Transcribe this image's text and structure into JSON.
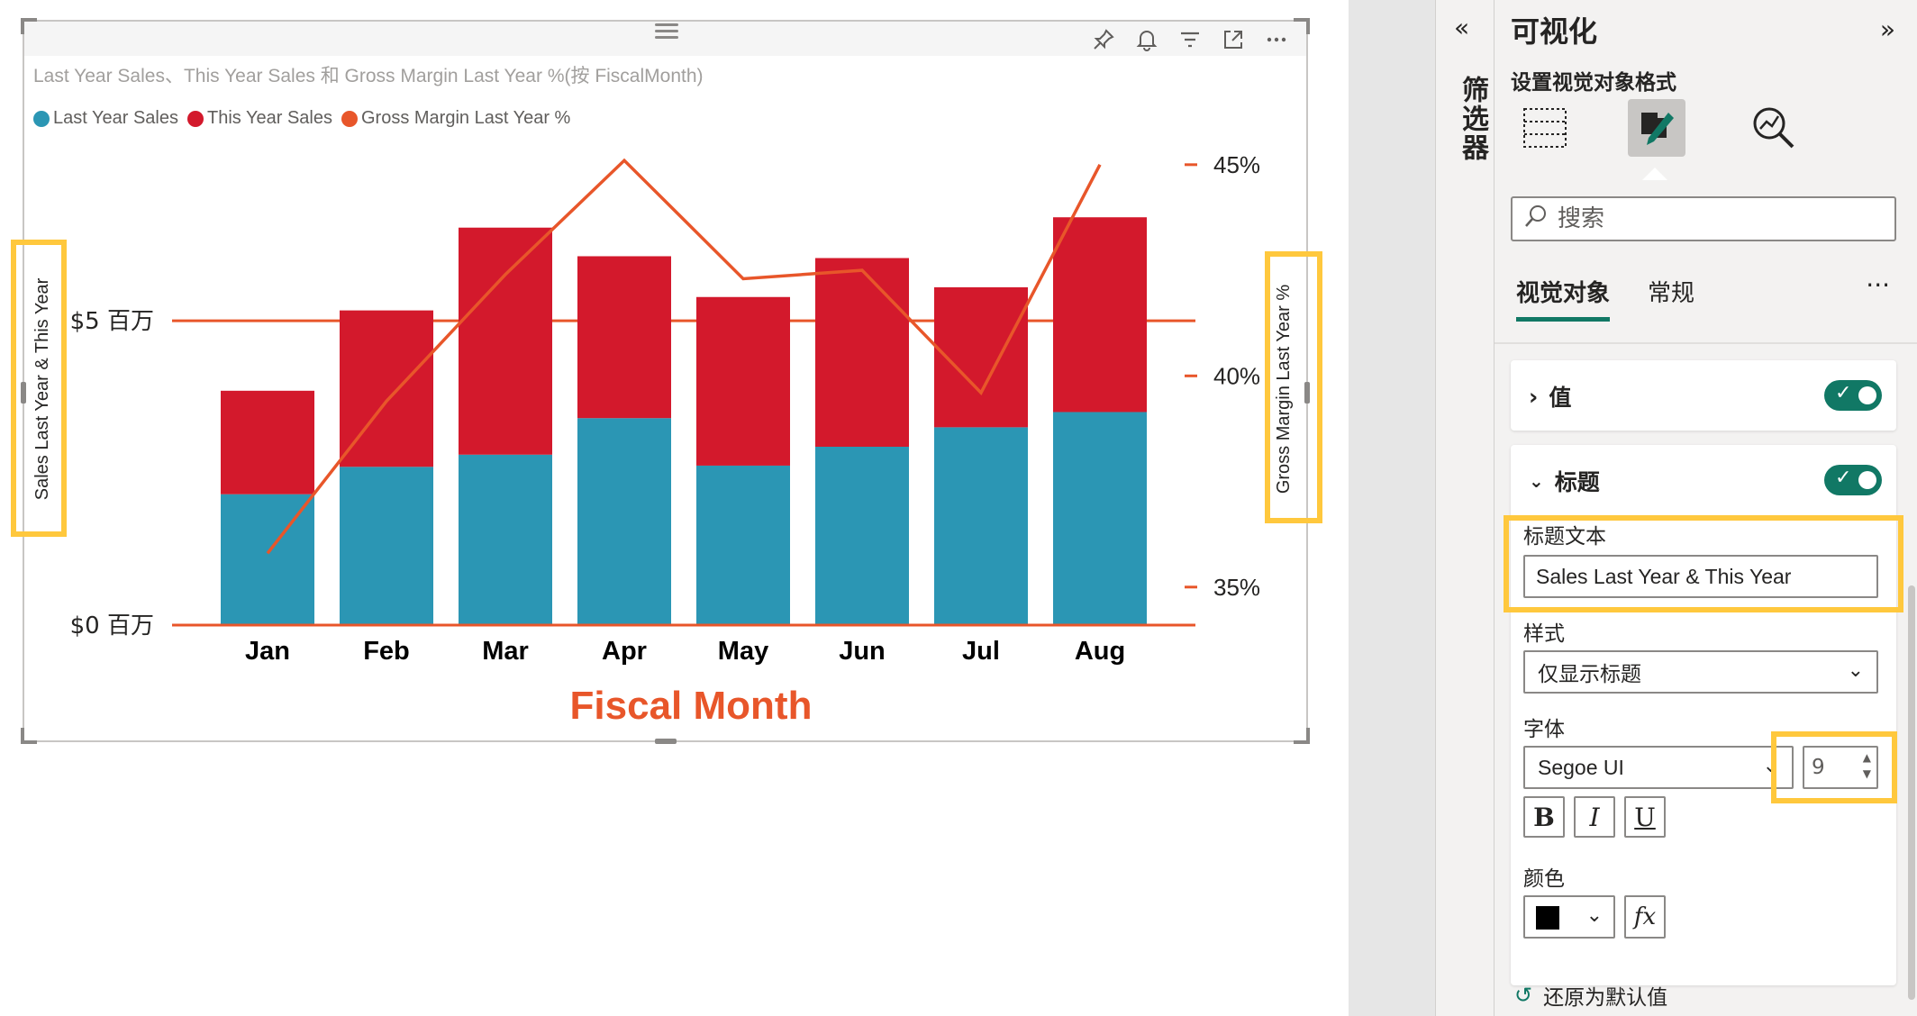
{
  "visual": {
    "title": "Last Year Sales、This Year Sales 和 Gross Margin Last Year %(按 FiscalMonth)",
    "header_icons": [
      "pin-icon",
      "bell-icon",
      "filter-icon",
      "focus-mode-icon",
      "more-options-icon"
    ],
    "legend": [
      {
        "label": "Last Year Sales",
        "color": "#2b96b4"
      },
      {
        "label": "This Year Sales",
        "color": "#d3192c"
      },
      {
        "label": "Gross Margin Last Year %",
        "color": "#e8562a"
      }
    ]
  },
  "chart_data": {
    "type": "bar",
    "stacked": true,
    "categories": [
      "Jan",
      "Feb",
      "Mar",
      "Apr",
      "May",
      "Jun",
      "Jul",
      "Aug"
    ],
    "series": [
      {
        "name": "Last Year Sales",
        "type": "bar",
        "axis": "left",
        "color": "#2b96b4",
        "values": [
          2.15,
          2.6,
          2.8,
          3.4,
          2.62,
          2.93,
          3.25,
          3.5
        ]
      },
      {
        "name": "This Year Sales",
        "type": "bar",
        "axis": "left",
        "color": "#d3192c",
        "values": [
          1.7,
          2.57,
          3.73,
          2.66,
          2.77,
          3.1,
          2.3,
          3.2
        ]
      },
      {
        "name": "Gross Margin Last Year %",
        "type": "line",
        "axis": "right",
        "color": "#e8562a",
        "values": [
          35.8,
          39.4,
          42.4,
          45.1,
          42.3,
          42.5,
          39.6,
          45.0
        ]
      }
    ],
    "xlabel": "Fiscal Month",
    "ylabel_left": "Sales Last Year & This Year",
    "ylabel_right": "Gross Margin Last Year %",
    "left_axis": {
      "ticks": [
        "$0 百万",
        "$5 百万"
      ],
      "tick_values": [
        0,
        5
      ],
      "range": [
        0,
        8.05
      ]
    },
    "right_axis": {
      "ticks": [
        "45%",
        "40%",
        "35%"
      ],
      "tick_values": [
        45,
        40,
        35
      ],
      "range": [
        34.1,
        45.7
      ]
    },
    "axis_color": "#e8562a",
    "xlabel_color": "#e8562a"
  },
  "filters": {
    "collapse_icon": "double-chevron-left-icon",
    "label": "筛选器"
  },
  "pane": {
    "title": "可视化",
    "expand_icon": "double-chevron-right-icon",
    "subtitle": "设置视觉对象格式",
    "tab_icons": [
      "build-visual-icon",
      "format-visual-icon",
      "analytics-icon"
    ],
    "search_placeholder": "搜索",
    "subtabs": [
      "视觉对象",
      "常规"
    ],
    "more": "···",
    "cards": {
      "value": {
        "label": "值",
        "on": true
      },
      "title": {
        "label": "标题",
        "on": true,
        "title_text_label": "标题文本",
        "title_text_value": "Sales Last Year & This Year",
        "style_label": "样式",
        "style_value": "仅显示标题",
        "font_label": "字体",
        "font_family": "Segoe UI",
        "font_size": "9",
        "bold": "B",
        "italic": "I",
        "underline": "U",
        "color_label": "颜色",
        "color_value": "#000000",
        "fx": "fx"
      }
    },
    "reset": "还原为默认值"
  },
  "highlight_color": "#ffc83d",
  "accent_color": "#117865"
}
